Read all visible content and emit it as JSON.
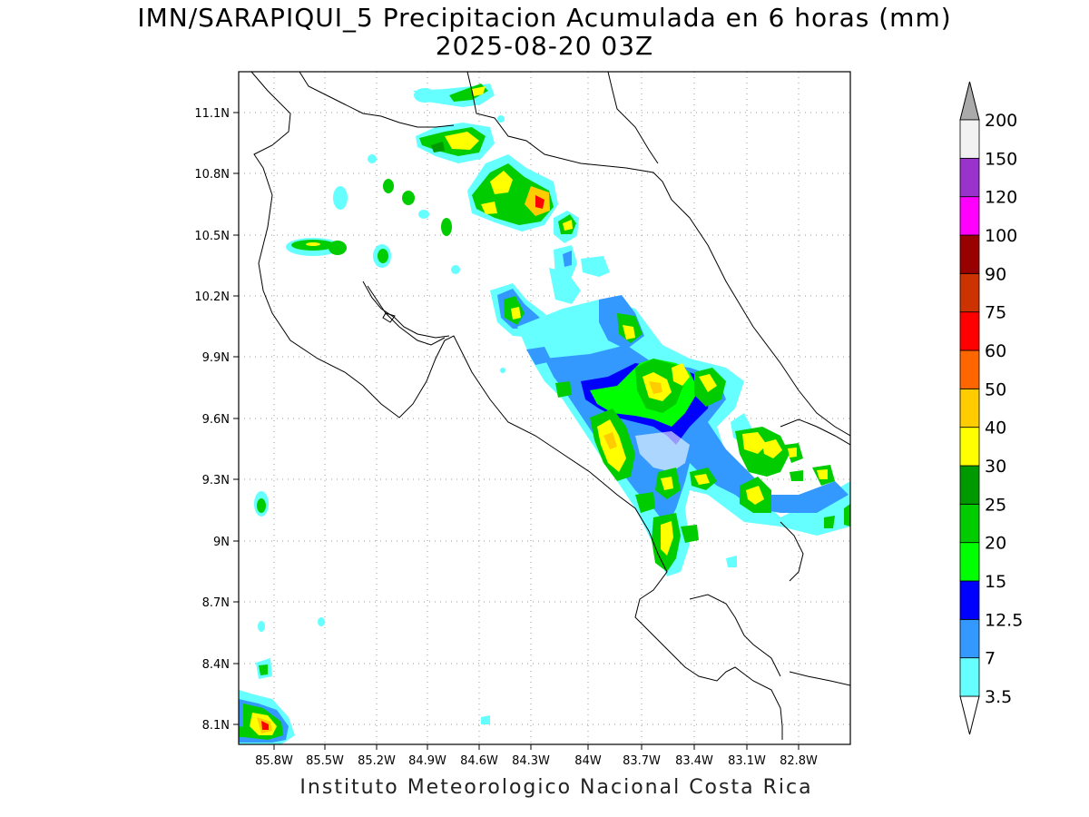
{
  "title_line1": "IMN/SARAPIQUI_5 Precipitacion Acumulada en 6 horas (mm)",
  "title_line2": "2025-08-20 03Z",
  "footer": "Instituto Meteorologico Nacional Costa Rica",
  "axes": {
    "lon_ticks": [
      "85.8W",
      "85.5W",
      "85.2W",
      "84.9W",
      "84.6W",
      "84.3W",
      "84W",
      "83.7W",
      "83.4W",
      "83.1W",
      "82.8W"
    ],
    "lat_ticks": [
      "11.1N",
      "10.8N",
      "10.5N",
      "10.2N",
      "9.9N",
      "9.6N",
      "9.3N",
      "9N",
      "8.7N",
      "8.4N",
      "8.1N"
    ],
    "grid": true
  },
  "colorbar": {
    "levels": [
      "3.5",
      "7",
      "12.5",
      "15",
      "20",
      "25",
      "30",
      "40",
      "50",
      "60",
      "75",
      "90",
      "100",
      "120",
      "150",
      "200"
    ],
    "colors": [
      "#ffffff",
      "#66ffff",
      "#3399ff",
      "#0000ff",
      "#00ff00",
      "#00cc00",
      "#009900",
      "#ffff00",
      "#ffcc00",
      "#ff6600",
      "#ff0000",
      "#cc3300",
      "#990000",
      "#ff00ff",
      "#9933cc",
      "#f2f2f2",
      "#aaaaaa"
    ]
  }
}
